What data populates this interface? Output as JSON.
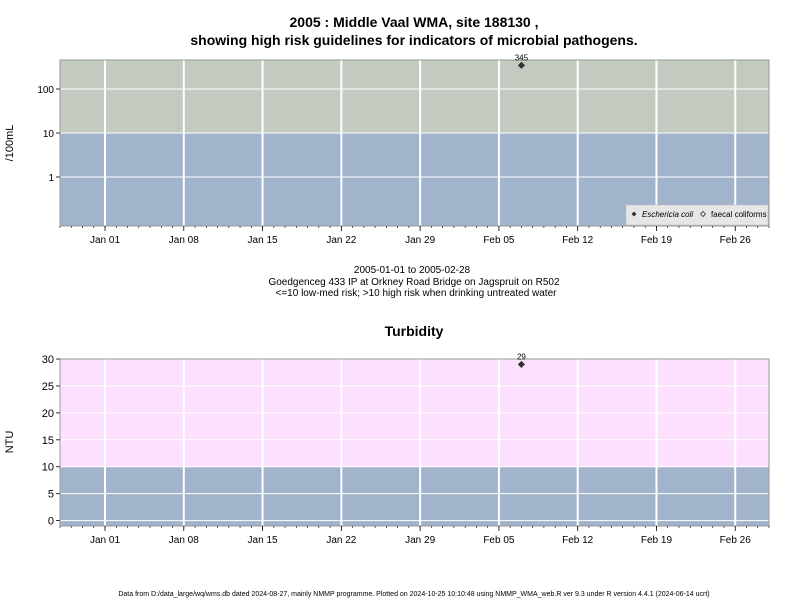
{
  "chart_data": [
    {
      "type": "scatter",
      "title_line1": "2005 : Middle Vaal WMA, site 188130 ,",
      "title_line2": "showing high risk guidelines for indicators of microbial pathogens.",
      "ylabel": "/100mL",
      "yscale": "log",
      "y_ticks": [
        1,
        10,
        100
      ],
      "y_tick_labels": [
        "1",
        "10",
        "100"
      ],
      "xlim": [
        "2004-12-28",
        "2005-03-01"
      ],
      "x_ticks": [
        "2005-01-01",
        "2005-01-08",
        "2005-01-15",
        "2005-01-22",
        "2005-01-29",
        "2005-02-05",
        "2005-02-12",
        "2005-02-19",
        "2005-02-26"
      ],
      "x_tick_labels": [
        "Jan 01",
        "Jan 08",
        "Jan 15",
        "Jan 22",
        "Jan 29",
        "Feb 05",
        "Feb 12",
        "Feb 19",
        "Feb 26"
      ],
      "bands": [
        {
          "from": 0,
          "to": 10,
          "color": "#a2b3cc"
        },
        {
          "from": 10,
          "to": 450,
          "color": "#c3cbc1"
        }
      ],
      "series": [
        {
          "name": "Eschericia coli",
          "marker": "filled-diamond",
          "x": [
            "2005-02-07"
          ],
          "y": [
            345
          ],
          "labels": [
            "345"
          ]
        },
        {
          "name": "faecal coliforms",
          "marker": "open-diamond",
          "x": [],
          "y": [],
          "labels": []
        }
      ],
      "legend": "bottom-right",
      "grid": true,
      "caption_line1": "2005-01-01 to 2005-02-28",
      "caption_line2": "Goedgenceg 433 IP at Orkney Road Bridge on Jagspruit on R502",
      "caption_line3": "<=10 low-med risk; >10 high risk when drinking untreated water"
    },
    {
      "type": "scatter",
      "title": "Turbidity",
      "ylabel": "NTU",
      "ylim": [
        -1,
        30
      ],
      "y_ticks": [
        0,
        5,
        10,
        15,
        20,
        25,
        30
      ],
      "y_tick_labels": [
        "0",
        "5",
        "10",
        "15",
        "20",
        "25",
        "30"
      ],
      "xlim": [
        "2004-12-28",
        "2005-03-01"
      ],
      "x_ticks": [
        "2005-01-01",
        "2005-01-08",
        "2005-01-15",
        "2005-01-22",
        "2005-01-29",
        "2005-02-05",
        "2005-02-12",
        "2005-02-19",
        "2005-02-26"
      ],
      "x_tick_labels": [
        "Jan 01",
        "Jan 08",
        "Jan 15",
        "Jan 22",
        "Jan 29",
        "Feb 05",
        "Feb 12",
        "Feb 19",
        "Feb 26"
      ],
      "bands": [
        {
          "from": -1,
          "to": 10,
          "color": "#a2b3cc"
        },
        {
          "from": 10,
          "to": 30,
          "color": "#fde0fd"
        }
      ],
      "series": [
        {
          "name": "Turbidity",
          "marker": "filled-diamond",
          "x": [
            "2005-02-07"
          ],
          "y": [
            29
          ],
          "labels": [
            "29"
          ]
        }
      ],
      "grid": true
    }
  ],
  "footer": "Data from D:/data_large/wq/wms.db dated 2024-08-27, mainly NMMP programme. Plotted on 2024-10-25 10:10:48 using NMMP_WMA_web.R ver 9.3 under R version 4.4.1 (2024-06-14 ucrt)"
}
